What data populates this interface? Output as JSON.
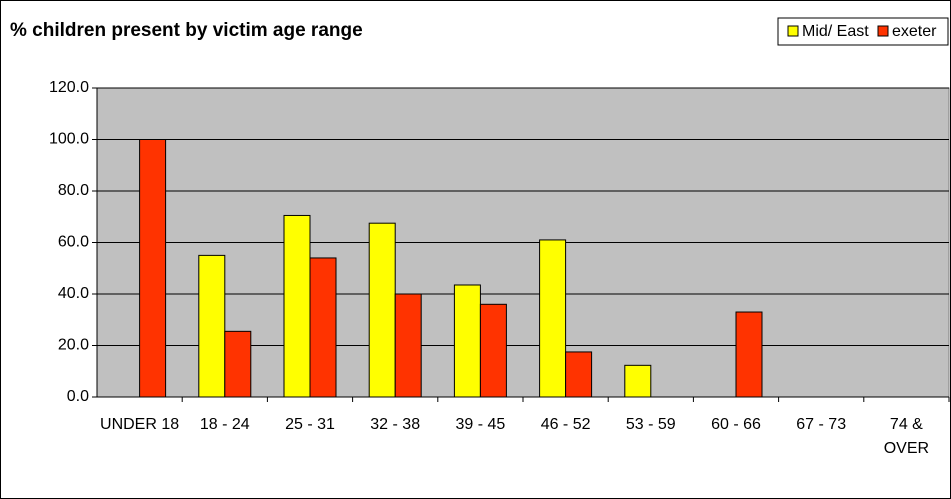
{
  "chart_data": {
    "type": "bar",
    "title": "% children present by victim age range",
    "categories": [
      "UNDER 18",
      "18 - 24",
      "25 - 31",
      "32 - 38",
      "39 - 45",
      "46 - 52",
      "53 - 59",
      "60 - 66",
      "67 - 73",
      "74 & OVER"
    ],
    "series": [
      {
        "name": "Mid/ East",
        "color": "#ffff00",
        "values": [
          0,
          55,
          70.5,
          67.5,
          43.5,
          61,
          12.3,
          0,
          0,
          0
        ]
      },
      {
        "name": "exeter",
        "color": "#ff3300",
        "values": [
          100,
          25.5,
          54,
          40,
          36,
          17.5,
          0,
          33,
          0,
          0
        ]
      }
    ],
    "ylim": [
      0,
      120
    ],
    "yticks": [
      {
        "value": 0,
        "label": "0.0"
      },
      {
        "value": 20,
        "label": "20.0"
      },
      {
        "value": 40,
        "label": "40.0"
      },
      {
        "value": 60,
        "label": "60.0"
      },
      {
        "value": 80,
        "label": "80.0"
      },
      {
        "value": 100,
        "label": "100.0"
      },
      {
        "value": 120,
        "label": "120.0"
      }
    ],
    "grid": true,
    "legend": "top-right",
    "background": "#c0c0c0"
  }
}
